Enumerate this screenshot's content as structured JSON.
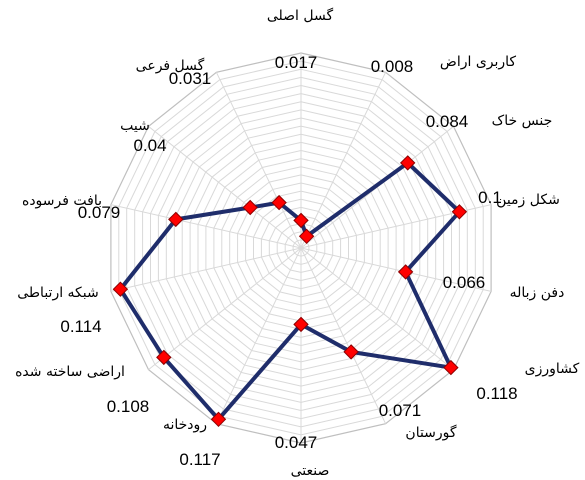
{
  "chart_data": {
    "type": "radar",
    "title": "",
    "categories": [
      "گسل اصلی",
      "کاربری اراضی",
      "جنس خاک",
      "شکل زمین",
      "دفن زباله",
      "کشاورزی",
      "گورستان",
      "صنعتی",
      "رودخانه",
      "اراضی ساخته شده",
      "شبکه ارتباطی",
      "بافت فرسوده",
      "شیب",
      "گسل فرعی"
    ],
    "category_label_text": [
      "گسل اصلی",
      "کاربری اراض",
      "جنس خاک",
      "شکل زمین",
      "دفن زباله",
      "کشاورزی",
      "گورستان",
      "صنعتی",
      "رودخانه",
      "اراضی ساخته شده",
      "شبکه ارتباطی",
      "بافت فرسوده",
      "شیب",
      "گسل فرعی"
    ],
    "value_label_text": [
      "0.017",
      "0.008",
      "0.084",
      "0.1",
      "0.066",
      "0.118",
      "0.071",
      "0.047",
      "0.117",
      "0.108",
      "0.114",
      "0.079",
      "0.04",
      "0.031"
    ],
    "series": [
      {
        "values": [
          0.017,
          0.008,
          0.084,
          0.1,
          0.066,
          0.118,
          0.071,
          0.047,
          0.117,
          0.108,
          0.114,
          0.079,
          0.04,
          0.031
        ],
        "line_color": "#1f2d6b",
        "marker_color": "#ff0000"
      }
    ],
    "rlim": [
      0,
      0.12
    ],
    "grid": true,
    "legend": "none"
  }
}
